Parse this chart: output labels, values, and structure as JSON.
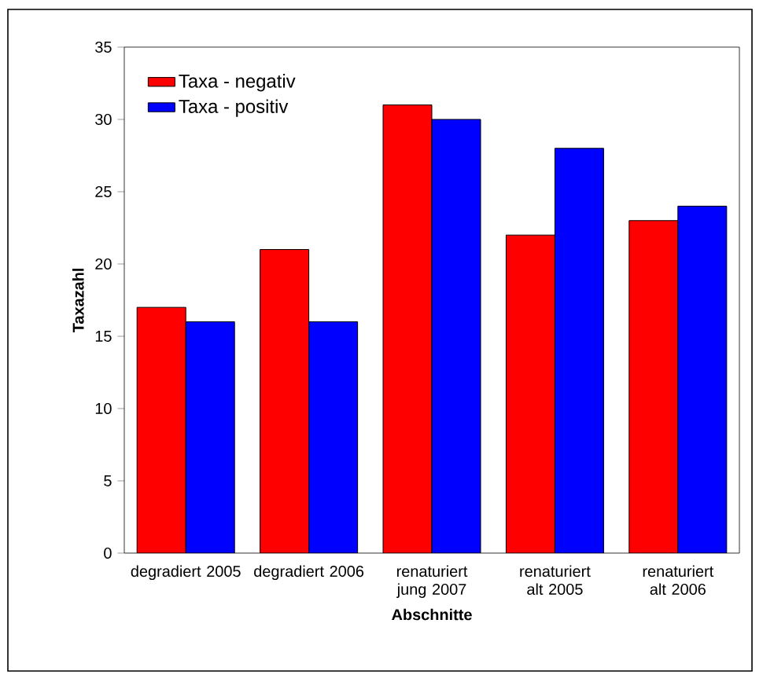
{
  "chart_data": {
    "type": "bar",
    "xlabel": "Abschnitte",
    "ylabel": "Taxazahl",
    "categories": [
      "degradiert 2005",
      "degradiert 2006",
      "renaturiert jung 2007",
      "renaturiert alt 2005",
      "renaturiert alt 2006"
    ],
    "series": [
      {
        "name": "Taxa - negativ",
        "color": "#ff0000",
        "values": [
          17,
          21,
          31,
          22,
          23
        ]
      },
      {
        "name": "Taxa - positiv",
        "color": "#0000ff",
        "values": [
          16,
          16,
          30,
          28,
          24
        ]
      }
    ],
    "ylim": [
      0,
      35
    ],
    "yticks": [
      0,
      5,
      10,
      15,
      20,
      25,
      30,
      35
    ],
    "legend": "top left"
  }
}
